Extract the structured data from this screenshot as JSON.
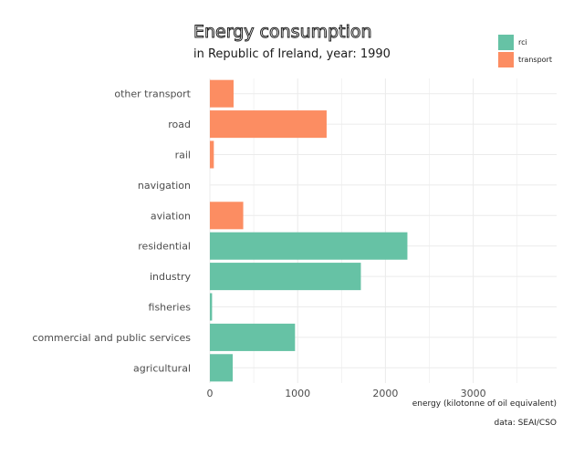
{
  "chart_data": {
    "type": "bar",
    "orientation": "horizontal",
    "title": "Energy consumption",
    "subtitle": "in Republic of Ireland, year: 1990",
    "xlabel": "energy (kilotonne of oil equivalent)",
    "ylabel": "",
    "caption": "data: SEAI/CSO",
    "xlim": [
      0,
      3950
    ],
    "xticks": [
      0,
      1000,
      2000,
      3000
    ],
    "grid": true,
    "legend_position": "top-right",
    "series": [
      {
        "name": "rci",
        "color": "#66C2A5"
      },
      {
        "name": "transport",
        "color": "#FC8D62"
      }
    ],
    "categories": [
      {
        "label": "other transport",
        "value": 270,
        "group": "transport"
      },
      {
        "label": "road",
        "value": 1330,
        "group": "transport"
      },
      {
        "label": "rail",
        "value": 45,
        "group": "transport"
      },
      {
        "label": "navigation",
        "value": 0,
        "group": "transport"
      },
      {
        "label": "aviation",
        "value": 380,
        "group": "transport"
      },
      {
        "label": "residential",
        "value": 2250,
        "group": "rci"
      },
      {
        "label": "industry",
        "value": 1720,
        "group": "rci"
      },
      {
        "label": "fisheries",
        "value": 25,
        "group": "rci"
      },
      {
        "label": "commercial and public services",
        "value": 970,
        "group": "rci"
      },
      {
        "label": "agricultural",
        "value": 260,
        "group": "rci"
      }
    ]
  }
}
